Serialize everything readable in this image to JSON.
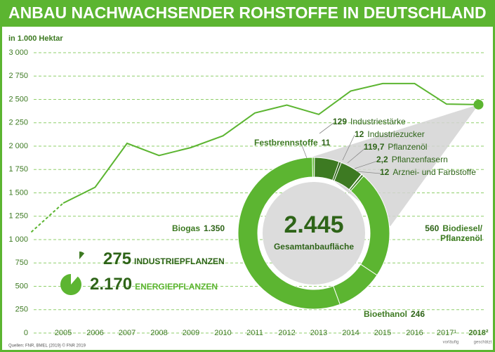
{
  "chart_data": [
    {
      "type": "line",
      "title": "ANBAU NACHWACHSENDER ROHSTOFFE IN DEUTSCHLAND",
      "y_label": "in 1.000 Hektar",
      "categories": [
        null,
        "2005",
        "2006",
        "2007",
        "2008",
        "2009",
        "2010",
        "2011",
        "2012",
        "2013",
        "2014",
        "2015",
        "2016",
        "2017¹",
        "2018²"
      ],
      "category_notes": [
        null,
        null,
        null,
        null,
        null,
        null,
        null,
        null,
        null,
        null,
        null,
        null,
        null,
        "vorläufig",
        "geschätzt"
      ],
      "series": [
        {
          "color": "#5cb531",
          "values": [
            1080,
            1390,
            1560,
            2030,
            1900,
            1985,
            2110,
            2355,
            2440,
            2340,
            2590,
            2670,
            2670,
            2450,
            2445
          ]
        }
      ],
      "ylim": [
        0,
        3000
      ],
      "yticks": [
        0,
        250,
        500,
        750,
        {
          "value": 1000,
          "label": "1 000"
        },
        {
          "value": 1250,
          "label": "1 250"
        },
        {
          "value": 1500,
          "label": "1 500"
        },
        {
          "value": 1750,
          "label": "1 750"
        },
        {
          "value": 2000,
          "label": "2 000"
        },
        {
          "value": 2250,
          "label": "2 250"
        },
        {
          "value": 2500,
          "label": "2 500"
        },
        {
          "value": 2750,
          "label": "2 750"
        },
        {
          "value": 3000,
          "label": "3 000"
        }
      ],
      "grid": true,
      "source": "Quellen: FNR, BMEL (2019) © FNR 2019"
    },
    {
      "type": "donut",
      "total": 2445,
      "total_label": "2.445",
      "center_text": "Gesamtanbaufläche",
      "categories": [
        "Festbrennstoffe",
        "Industriestärke",
        "Industriezucker",
        "Pflanzenöl",
        "Pflanzenfasern",
        "Arznei- und Farbstoffe",
        "Biodiesel/ Pflanzenöl",
        "Bioethanol",
        "Biogas"
      ],
      "values": [
        11,
        129,
        12,
        119.7,
        2.2,
        12,
        560,
        246,
        1350
      ],
      "value_labels": [
        "11",
        "129",
        "12",
        "119,7",
        "2,2",
        "12",
        "560",
        "246",
        "1.350"
      ],
      "colors": [
        "#5cb531",
        "#3d7a22",
        "#2e6418",
        "#3d7a22",
        "#2e6418",
        "#3d7a22",
        "#5cb531",
        "#5cb531",
        "#5cb531"
      ],
      "groups": [
        {
          "name": "INDUSTRIEPFLANZEN",
          "value": 275,
          "value_label": "275",
          "color": "#3d7a22"
        },
        {
          "name": "ENERGIEPFLANZEN",
          "value": 2170,
          "value_label": "2.170",
          "color": "#5cb531"
        }
      ]
    }
  ]
}
